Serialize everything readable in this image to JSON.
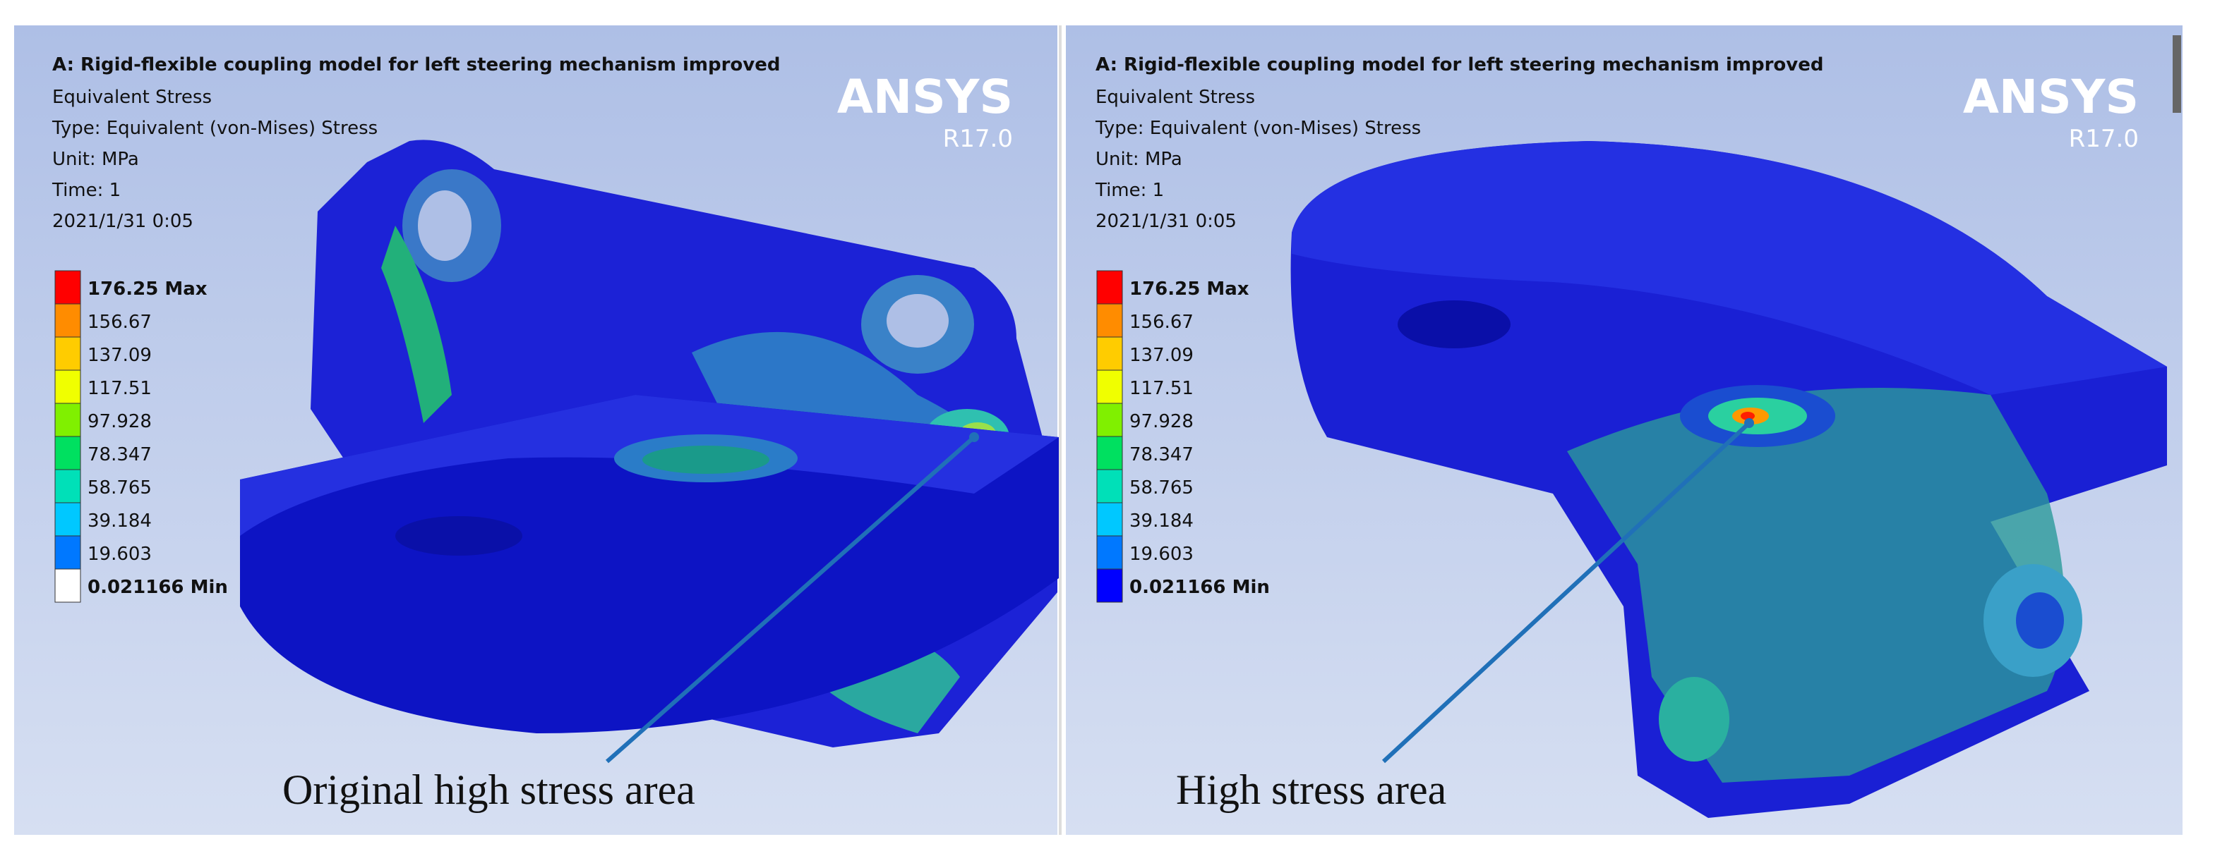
{
  "panels": [
    {
      "title": "A: Rigid-flexible coupling model for left steering mechanism improved",
      "lines": [
        "Equivalent Stress",
        "Type: Equivalent (von-Mises) Stress",
        "Unit: MPa",
        "Time: 1",
        "2021/1/31 0:05"
      ],
      "logo": "ANSYS",
      "version": "R17.0",
      "legend": [
        "176.25 Max",
        "156.67",
        "137.09",
        "117.51",
        "97.928",
        "78.347",
        "58.765",
        "39.184",
        "19.603",
        "0.021166 Min"
      ],
      "annotation": "Original high stress area"
    },
    {
      "title": "A: Rigid-flexible coupling model for left steering mechanism improved",
      "lines": [
        "Equivalent Stress",
        "Type: Equivalent (von-Mises) Stress",
        "Unit: MPa",
        "Time: 1",
        "2021/1/31 0:05"
      ],
      "logo": "ANSYS",
      "version": "R17.0",
      "legend": [
        "176.25 Max",
        "156.67",
        "137.09",
        "117.51",
        "97.928",
        "78.347",
        "58.765",
        "39.184",
        "19.603",
        "0.021166 Min"
      ],
      "annotation": "High stress area"
    }
  ]
}
